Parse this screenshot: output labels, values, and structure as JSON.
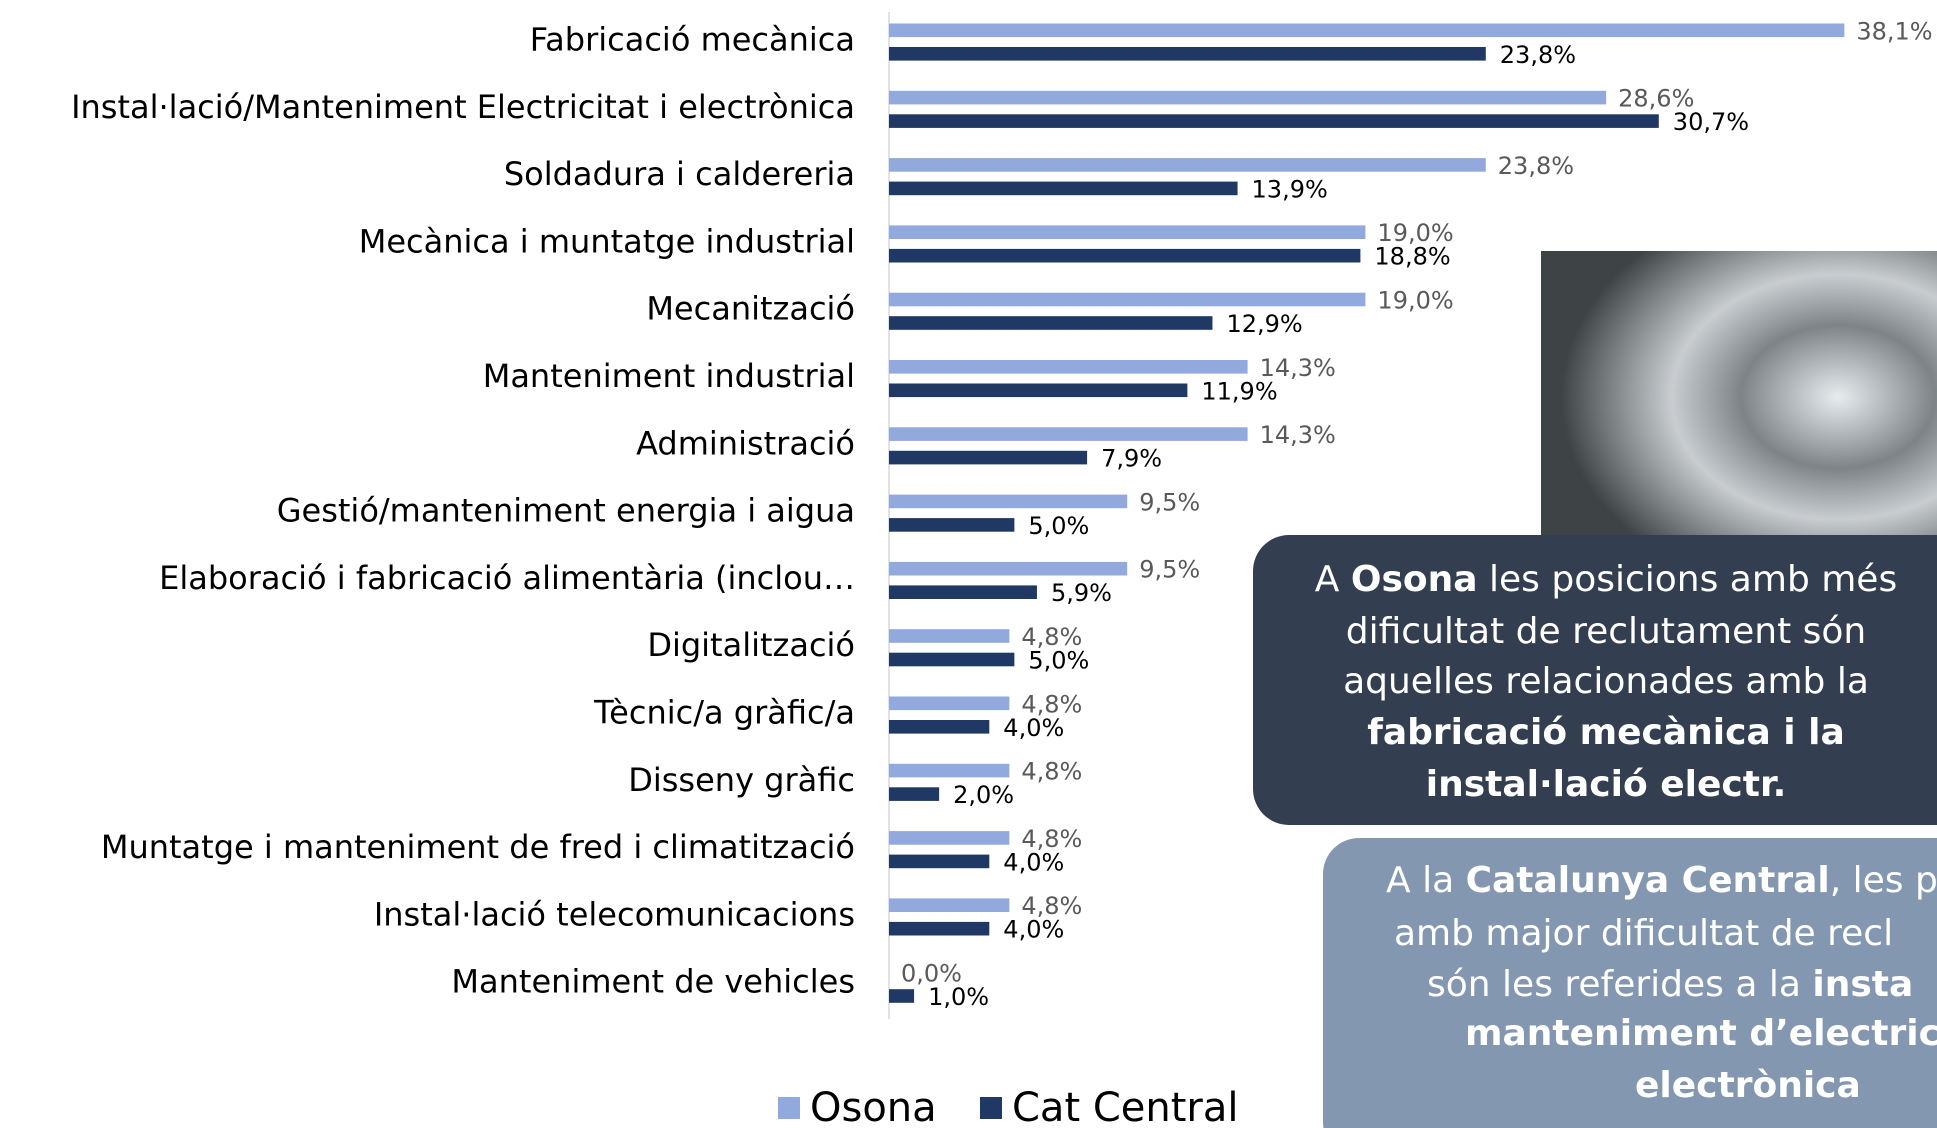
{
  "chart_data": {
    "type": "hbar",
    "categories": [
      "Fabricació mecànica",
      "Instal·lació/Manteniment Electricitat i electrònica",
      "Soldadura i caldereria",
      "Mecànica i muntatge industrial",
      "Mecanització",
      "Manteniment industrial",
      "Administració",
      "Gestió/manteniment energia i aigua",
      "Elaboració i fabricació alimentària (inclou…",
      "Digitalització",
      "Tècnic/a gràfic/a",
      "Disseny gràfic",
      "Muntatge i manteniment de fred i climatització",
      "Instal·lació telecomunicacions",
      "Manteniment de vehicles"
    ],
    "series": [
      {
        "name": "Osona",
        "color": "#92a9de",
        "label_color": "#595959",
        "values": [
          38.1,
          28.6,
          23.8,
          19.0,
          19.0,
          14.3,
          14.3,
          9.5,
          9.5,
          4.8,
          4.8,
          4.8,
          4.8,
          4.8,
          0.0
        ],
        "value_labels": [
          "38,1%",
          "28,6%",
          "23,8%",
          "19,0%",
          "19,0%",
          "14,3%",
          "14,3%",
          "9,5%",
          "9,5%",
          "4,8%",
          "4,8%",
          "4,8%",
          "4,8%",
          "4,8%",
          "0,0%"
        ]
      },
      {
        "name": "Cat Central",
        "color": "#1f3864",
        "label_color": "#000000",
        "values": [
          23.8,
          30.7,
          13.9,
          18.8,
          12.9,
          11.9,
          7.9,
          5.0,
          5.9,
          5.0,
          4.0,
          2.0,
          4.0,
          4.0,
          1.0
        ],
        "value_labels": [
          "23,8%",
          "30,7%",
          "13,9%",
          "18,8%",
          "12,9%",
          "11,9%",
          "7,9%",
          "5,0%",
          "5,9%",
          "5,0%",
          "4,0%",
          "2,0%",
          "4,0%",
          "4,0%",
          "1,0%"
        ]
      }
    ],
    "xlim": [
      0,
      40
    ]
  },
  "annotations": [
    {
      "color": "#333f50",
      "lines": [
        [
          {
            "text": "A "
          },
          {
            "text": "Osona",
            "bold": true
          },
          {
            "text": " les posicions amb més"
          }
        ],
        [
          {
            "text": "dificultat de reclutament són"
          }
        ],
        [
          {
            "text": "aquelles relacionades amb la"
          }
        ],
        [
          {
            "text": "fabricació mecànica i la",
            "bold": true
          }
        ],
        [
          {
            "text": "instal·lació electr.",
            "bold": true
          }
        ]
      ]
    },
    {
      "color": "#8497b0",
      "lines": [
        [
          {
            "text": "A la "
          },
          {
            "text": "Catalunya Central",
            "bold": true
          },
          {
            "text": ", les p"
          }
        ],
        [
          {
            "text": "amb major dificultat de recl"
          }
        ],
        [
          {
            "text": "són les referides a la "
          },
          {
            "text": "insta",
            "bold": true
          }
        ],
        [
          {
            "text": "manteniment d’electric",
            "bold": true
          }
        ],
        [
          {
            "text": "electrònica",
            "bold": true
          }
        ]
      ]
    }
  ]
}
